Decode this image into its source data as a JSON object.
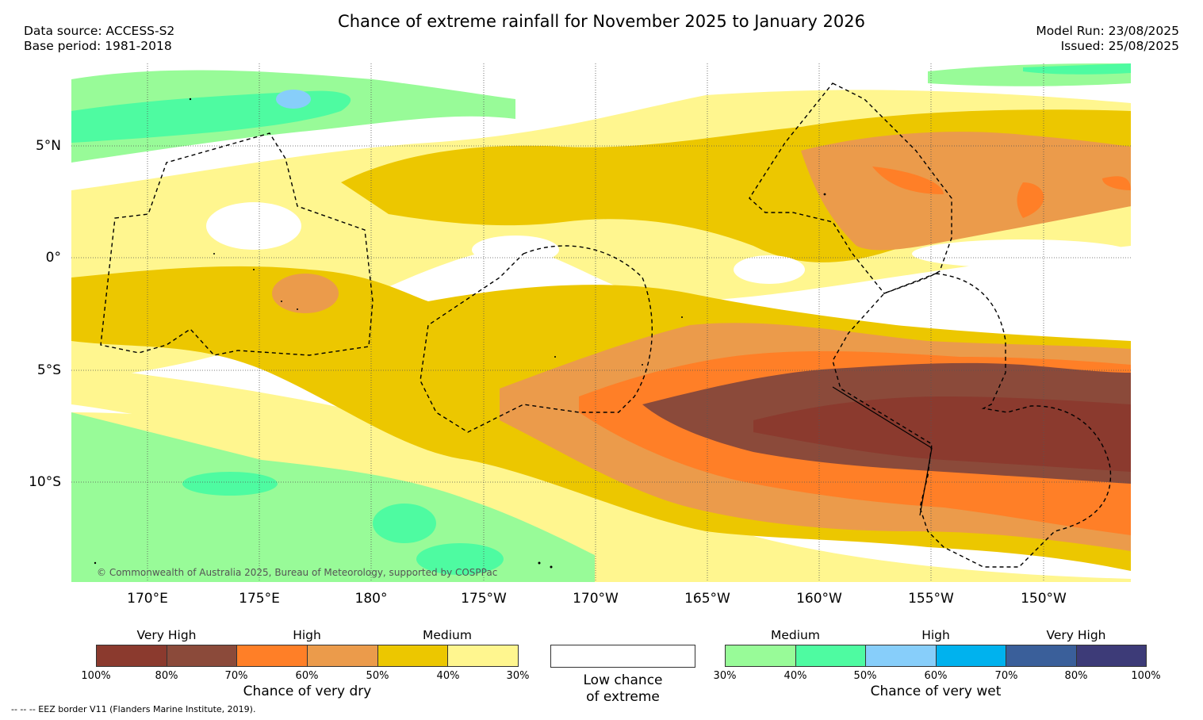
{
  "header": {
    "title": "Chance of extreme rainfall for November 2025 to January 2026",
    "data_source": "Data source: ACCESS-S2",
    "base_period": "Base period: 1981-2018",
    "model_run": "Model Run: 23/08/2025",
    "issued": "Issued: 25/08/2025"
  },
  "map": {
    "lat_labels": [
      "5°N",
      "0°",
      "5°S",
      "10°S"
    ],
    "lon_labels": [
      "170°E",
      "175°E",
      "180°",
      "175°W",
      "170°W",
      "165°W",
      "160°W",
      "155°W",
      "150°W"
    ],
    "copyright": "© Commonwealth of Australia 2025, Bureau of Meteorology, supported by COSPPac",
    "colors": {
      "dry_very_high_100": "#8b3a2e",
      "dry_very_high_80": "#8b4a3a",
      "dry_high_70": "#ff7f27",
      "dry_high_60": "#eb9b4b",
      "dry_medium_50": "#ecc700",
      "dry_medium_40": "#fff68f",
      "wet_medium_30": "#98fb98",
      "wet_medium_40": "#4efba1",
      "wet_high_50": "#87cefa",
      "wet_high_60": "#00b2ee",
      "wet_very_high_70": "#3a5f9a",
      "wet_very_high_80": "#3d3b78"
    }
  },
  "legend": {
    "dry": {
      "title": "Chance of very dry",
      "categories": [
        "Very High",
        "High",
        "Medium"
      ],
      "ticks": [
        "100%",
        "80%",
        "70%",
        "60%",
        "50%",
        "40%",
        "30%"
      ]
    },
    "none": {
      "line1": "Low chance",
      "line2": "of extreme"
    },
    "wet": {
      "title": "Chance of very wet",
      "categories": [
        "Medium",
        "High",
        "Very High"
      ],
      "ticks": [
        "30%",
        "40%",
        "50%",
        "60%",
        "70%",
        "80%",
        "100%"
      ]
    },
    "eez_note": "--  --  -- EEZ border V11 (Flanders Marine Institute, 2019)."
  }
}
